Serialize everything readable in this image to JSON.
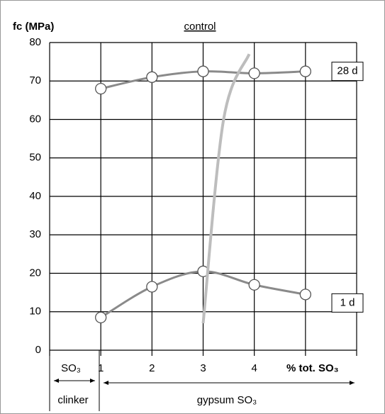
{
  "chart_data": {
    "type": "line",
    "y_label": "fc (MPa)",
    "x_label_annotations": [
      "SO₃",
      "clinker",
      "gypsum SO₃"
    ],
    "xlim": [
      0,
      6
    ],
    "xticks": [
      1,
      2,
      3,
      4,
      {
        "value": 5,
        "label": "% tot. SO₃"
      }
    ],
    "ylim": [
      0,
      80
    ],
    "yticks": [
      0,
      10,
      20,
      30,
      40,
      50,
      60,
      70,
      80
    ],
    "grid": true,
    "series": [
      {
        "name": "28 d",
        "color": "#8a8a8a",
        "markers": true,
        "x": [
          1,
          2,
          3,
          4,
          5
        ],
        "values": [
          68,
          71,
          72.5,
          72,
          72.5
        ]
      },
      {
        "name": "1 d",
        "color": "#8a8a8a",
        "markers": true,
        "x": [
          1,
          2,
          3,
          4,
          5
        ],
        "values": [
          8.5,
          16.5,
          20.5,
          17,
          14.5
        ]
      },
      {
        "name": "control",
        "color": "#bdbdbd",
        "markers": false,
        "x": [
          3,
          3.4,
          3.9
        ],
        "values": [
          7,
          60,
          77
        ]
      }
    ]
  }
}
